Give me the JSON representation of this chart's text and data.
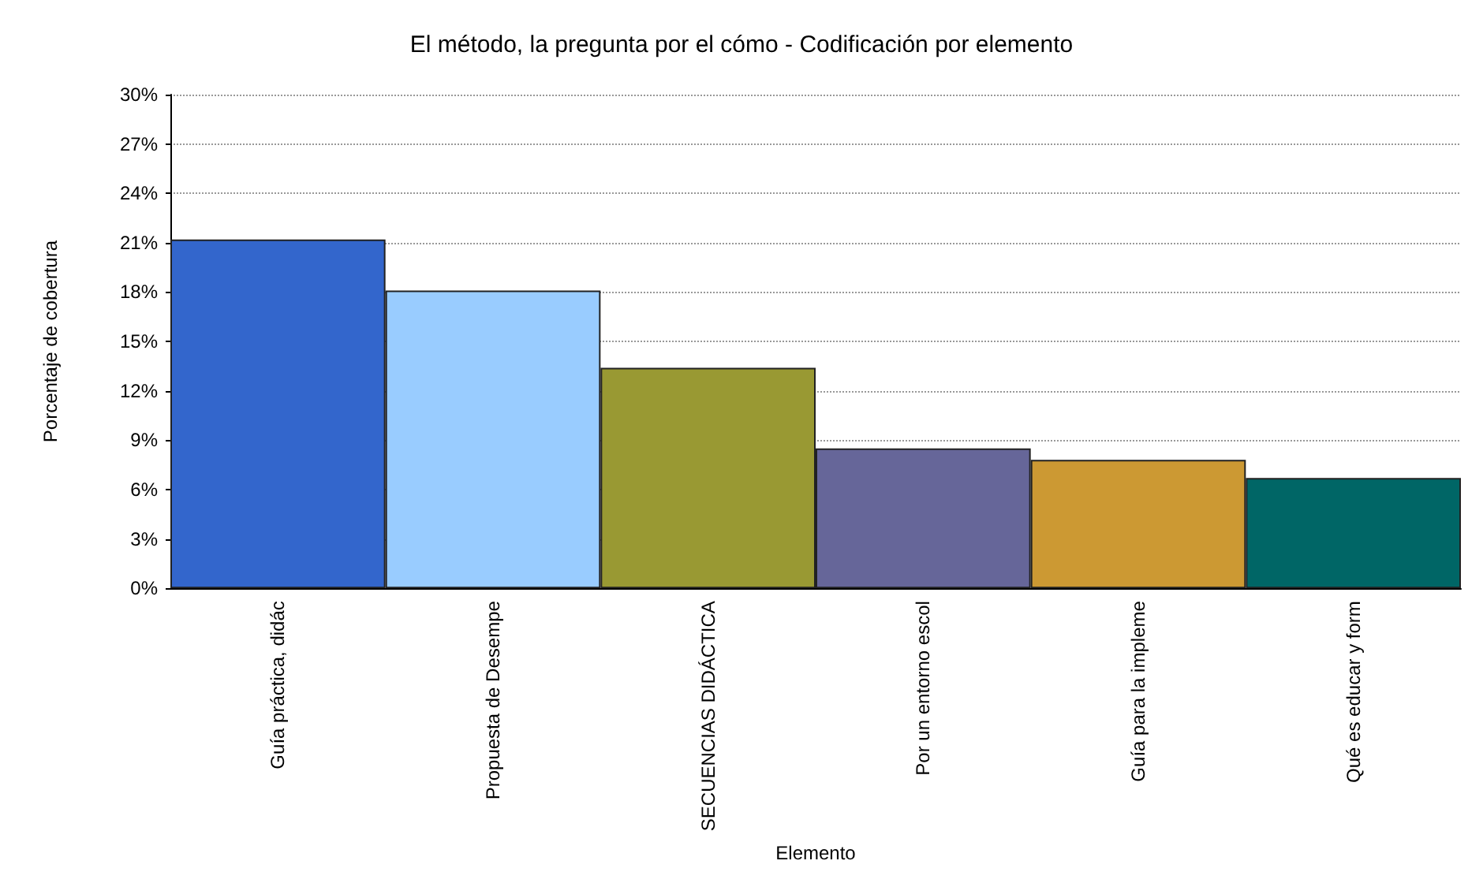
{
  "chart_data": {
    "type": "bar",
    "title": "El método, la pregunta por el cómo - Codificación por elemento",
    "xlabel": "Elemento",
    "ylabel": "Porcentaje de cobertura",
    "categories": [
      "Guía práctica, didác",
      "Propuesta de Desempe",
      "SECUENCIAS DIDÁCTICA",
      "Por un entorno escol",
      "Guía para la impleme",
      "Qué es educar y form"
    ],
    "values": [
      21.2,
      18.1,
      13.4,
      8.5,
      7.8,
      6.7
    ],
    "colors": [
      "#3366cc",
      "#99ccff",
      "#999933",
      "#666699",
      "#cc9933",
      "#006666"
    ],
    "ylim": [
      0,
      30
    ],
    "yticks": [
      {
        "value": 0,
        "label": "0%"
      },
      {
        "value": 3,
        "label": "3%"
      },
      {
        "value": 6,
        "label": "6%"
      },
      {
        "value": 9,
        "label": "9%"
      },
      {
        "value": 12,
        "label": "12%"
      },
      {
        "value": 15,
        "label": "15%"
      },
      {
        "value": 18,
        "label": "18%"
      },
      {
        "value": 21,
        "label": "21%"
      },
      {
        "value": 24,
        "label": "24%"
      },
      {
        "value": 27,
        "label": "27%"
      },
      {
        "value": 30,
        "label": "30%"
      }
    ],
    "grid": "y"
  }
}
